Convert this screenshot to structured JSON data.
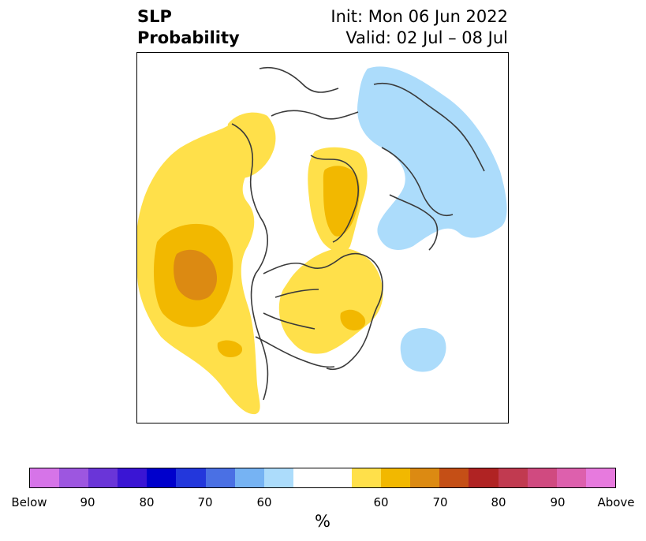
{
  "header": {
    "variable": "SLP",
    "product": "Probability",
    "init": "Init: Mon 06 Jun 2022",
    "valid": "Valid: 02 Jul – 08 Jul"
  },
  "map": {
    "region": "northern-hemisphere-north-america-polar",
    "fill_colors": {
      "above_50": "#ffe04a",
      "above_60": "#f2b800",
      "above_70": "#dc8a12",
      "below_50": "#acdcfb"
    }
  },
  "colorbar": {
    "unit": "%",
    "colors": [
      "#d674e8",
      "#9d56e0",
      "#6a35d8",
      "#3a15d4",
      "#0000cc",
      "#2337dc",
      "#4a70e4",
      "#76b3f3",
      "#acdcfb",
      "#ffffff",
      "#ffe04a",
      "#f2b800",
      "#dc8a12",
      "#c54f16",
      "#b02323",
      "#c13a50",
      "#d04a80",
      "#dd60ad",
      "#e77ade"
    ],
    "tick_labels": [
      "Below",
      "90",
      "80",
      "70",
      "60",
      "60",
      "70",
      "80",
      "90",
      "Above"
    ]
  }
}
